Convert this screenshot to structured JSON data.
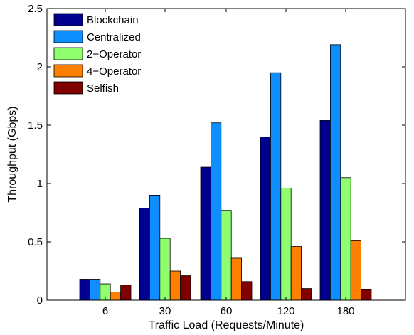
{
  "chart_data": {
    "type": "bar",
    "xlabel": "Traffic Load (Requests/Minute)",
    "ylabel": "Throughput (Gbps)",
    "categories": [
      "6",
      "30",
      "60",
      "120",
      "180"
    ],
    "ylim": [
      0,
      2.5
    ],
    "yticks": [
      "0",
      "0.5",
      "1",
      "1.5",
      "2",
      "2.5"
    ],
    "legend_position": "top-left",
    "series": [
      {
        "name": "Blockchain",
        "color": "#00008f",
        "values": [
          0.18,
          0.79,
          1.14,
          1.4,
          1.54
        ]
      },
      {
        "name": "Centralized",
        "color": "#0f8fff",
        "values": [
          0.18,
          0.9,
          1.52,
          1.95,
          2.19
        ]
      },
      {
        "name": "2−Operator",
        "color": "#8fff70",
        "values": [
          0.14,
          0.53,
          0.77,
          0.96,
          1.05
        ]
      },
      {
        "name": "4−Operator",
        "color": "#ff7f00",
        "values": [
          0.07,
          0.25,
          0.36,
          0.46,
          0.51
        ]
      },
      {
        "name": "Selfish",
        "color": "#800000",
        "values": [
          0.13,
          0.21,
          0.16,
          0.1,
          0.09
        ]
      }
    ]
  }
}
